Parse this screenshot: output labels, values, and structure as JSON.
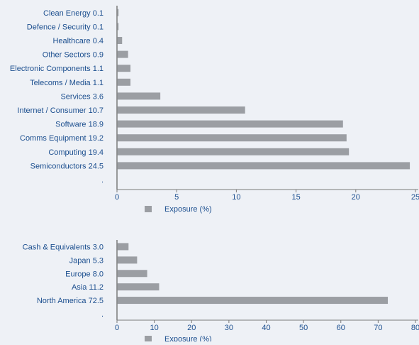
{
  "colors": {
    "background": "#eef1f6",
    "bar": "#9b9ea3",
    "label": "#1c4f8f",
    "axis": "#7a7a7a"
  },
  "chart_data": [
    {
      "type": "bar",
      "orientation": "horizontal",
      "categories": [
        "Clean Energy 0.1",
        "Defence / Security 0.1",
        "Healthcare 0.4",
        "Other Sectors 0.9",
        "Electronic Components 1.1",
        "Telecoms / Media 1.1",
        "Services 3.6",
        "Internet / Consumer 10.7",
        "Software 18.9",
        "Comms Equipment 19.2",
        "Computing 19.4",
        "Semiconductors 24.5"
      ],
      "values": [
        0.1,
        0.1,
        0.4,
        0.9,
        1.1,
        1.1,
        3.6,
        10.7,
        18.9,
        19.2,
        19.4,
        24.5
      ],
      "trailing_tick_label": ".",
      "xlim": [
        0,
        25
      ],
      "xticks": [
        0,
        5,
        10,
        15,
        20,
        25
      ],
      "grid": false,
      "legend": {
        "label": "Exposure (%)",
        "placement": "bottom-center"
      }
    },
    {
      "type": "bar",
      "orientation": "horizontal",
      "categories": [
        "Cash & Equivalents 3.0",
        "Japan 5.3",
        "Europe 8.0",
        "Asia 11.2",
        "North America 72.5"
      ],
      "values": [
        3.0,
        5.3,
        8.0,
        11.2,
        72.5
      ],
      "trailing_tick_label": ".",
      "xlim": [
        0,
        80
      ],
      "xticks": [
        0,
        10,
        20,
        30,
        40,
        50,
        60,
        70,
        80
      ],
      "grid": false,
      "legend": {
        "label": "Exposure (%)",
        "placement": "bottom-center"
      }
    }
  ]
}
